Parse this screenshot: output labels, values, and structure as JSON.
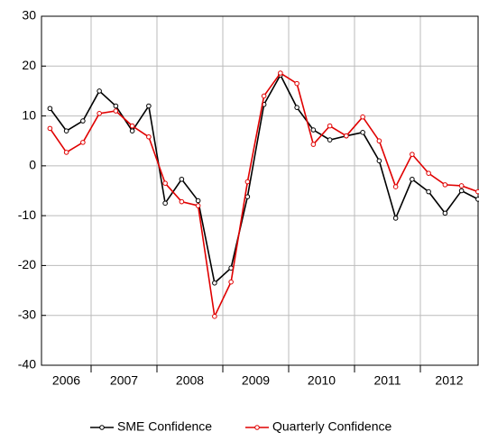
{
  "chart_data": {
    "type": "line",
    "categories": [
      null,
      null,
      null,
      null,
      null,
      null,
      null,
      null,
      null,
      null,
      null,
      null,
      null,
      null,
      null,
      null,
      null,
      null,
      null,
      null,
      null,
      null,
      null,
      null,
      null,
      null,
      null
    ],
    "year_labels": [
      "2006",
      "2007",
      "2008",
      "2009",
      "2010",
      "2011",
      "2012"
    ],
    "series": [
      {
        "name": "SME Confidence",
        "color": "#000000",
        "values": [
          11.5,
          7,
          9,
          15,
          12,
          7,
          12,
          -7.5,
          -2.7,
          -7,
          -23.5,
          -20.5,
          -6.2,
          12.3,
          18.2,
          11.7,
          7.2,
          5.2,
          6,
          6.7,
          1,
          -10.5,
          -2.7,
          -5.2,
          -9.5,
          -5,
          -6.7
        ]
      },
      {
        "name": "Quarterly Confidence",
        "color": "#e00000",
        "values": [
          7.5,
          2.7,
          4.7,
          10.5,
          11,
          8,
          5.8,
          -3.5,
          -7.2,
          -8,
          -30.2,
          -23.3,
          -3.2,
          14,
          18.6,
          16.5,
          4.3,
          8,
          6,
          9.8,
          5,
          -4.2,
          2.3,
          -1.5,
          -3.8,
          -4,
          -5.2
        ]
      }
    ],
    "ylim": [
      -40,
      30
    ],
    "yticks": [
      -40,
      -30,
      -20,
      -10,
      0,
      10,
      20,
      30
    ],
    "grid": true
  }
}
